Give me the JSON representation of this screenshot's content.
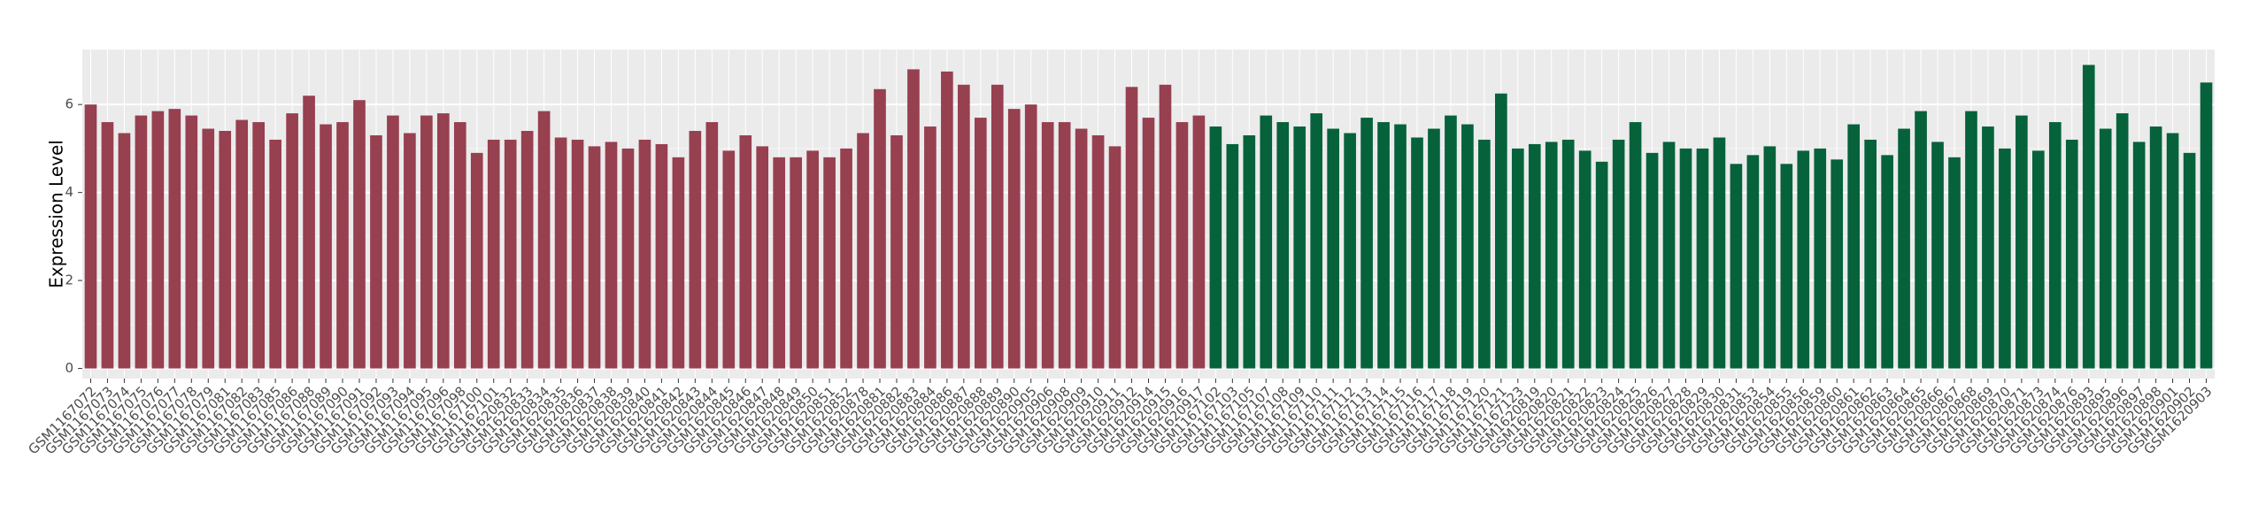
{
  "chart_data": {
    "type": "bar",
    "y_label": "Expression Level",
    "categories": [
      "GSM1167072",
      "GSM1167073",
      "GSM1167074",
      "GSM1167075",
      "GSM1167076",
      "GSM1167077",
      "GSM1167078",
      "GSM1167079",
      "GSM1167081",
      "GSM1167082",
      "GSM1167083",
      "GSM1167085",
      "GSM1167086",
      "GSM1167088",
      "GSM1167089",
      "GSM1167090",
      "GSM1167091",
      "GSM1167092",
      "GSM1167093",
      "GSM1167094",
      "GSM1167095",
      "GSM1167096",
      "GSM1167098",
      "GSM1167100",
      "GSM1167101",
      "GSM1620832",
      "GSM1620833",
      "GSM1620834",
      "GSM1620835",
      "GSM1620836",
      "GSM1620837",
      "GSM1620838",
      "GSM1620839",
      "GSM1620840",
      "GSM1620841",
      "GSM1620842",
      "GSM1620843",
      "GSM1620844",
      "GSM1620845",
      "GSM1620846",
      "GSM1620847",
      "GSM1620848",
      "GSM1620849",
      "GSM1620850",
      "GSM1620851",
      "GSM1620852",
      "GSM1620878",
      "GSM1620881",
      "GSM1620882",
      "GSM1620883",
      "GSM1620884",
      "GSM1620886",
      "GSM1620887",
      "GSM1620888",
      "GSM1620889",
      "GSM1620890",
      "GSM1620905",
      "GSM1620906",
      "GSM1620908",
      "GSM1620909",
      "GSM1620910",
      "GSM1620911",
      "GSM1620912",
      "GSM1620914",
      "GSM1620915",
      "GSM1620916",
      "GSM1620917",
      "GSM1167102",
      "GSM1167103",
      "GSM1167105",
      "GSM1167107",
      "GSM1167108",
      "GSM1167109",
      "GSM1167110",
      "GSM1167111",
      "GSM1167112",
      "GSM1167113",
      "GSM1167114",
      "GSM1167115",
      "GSM1167116",
      "GSM1167117",
      "GSM1167118",
      "GSM1167119",
      "GSM1167120",
      "GSM1167121",
      "GSM1167123",
      "GSM1620819",
      "GSM1620820",
      "GSM1620821",
      "GSM1620822",
      "GSM1620823",
      "GSM1620824",
      "GSM1620825",
      "GSM1620826",
      "GSM1620827",
      "GSM1620828",
      "GSM1620829",
      "GSM1620830",
      "GSM1620831",
      "GSM1620853",
      "GSM1620854",
      "GSM1620855",
      "GSM1620856",
      "GSM1620859",
      "GSM1620860",
      "GSM1620861",
      "GSM1620862",
      "GSM1620863",
      "GSM1620864",
      "GSM1620865",
      "GSM1620866",
      "GSM1620867",
      "GSM1620868",
      "GSM1620869",
      "GSM1620870",
      "GSM1620871",
      "GSM1620873",
      "GSM1620874",
      "GSM1620876",
      "GSM1620893",
      "GSM1620895",
      "GSM1620896",
      "GSM1620897",
      "GSM1620898",
      "GSM1620901",
      "GSM1620902",
      "GSM1620903"
    ],
    "values": [
      6.0,
      5.6,
      5.35,
      5.75,
      5.85,
      5.9,
      5.75,
      5.45,
      5.4,
      5.65,
      5.6,
      5.2,
      5.8,
      6.2,
      5.55,
      5.6,
      6.1,
      5.3,
      5.75,
      5.35,
      5.75,
      5.8,
      5.6,
      4.9,
      5.2,
      5.2,
      5.4,
      5.85,
      5.25,
      5.2,
      5.05,
      5.15,
      5.0,
      5.2,
      5.1,
      4.8,
      5.4,
      5.6,
      4.95,
      5.3,
      5.05,
      4.8,
      4.8,
      4.95,
      4.8,
      5.0,
      5.35,
      6.35,
      5.3,
      6.8,
      5.5,
      6.75,
      6.45,
      5.7,
      6.45,
      5.9,
      6.0,
      5.6,
      5.6,
      5.45,
      5.3,
      5.05,
      6.4,
      5.7,
      6.45,
      5.6,
      5.75,
      5.5,
      5.1,
      5.3,
      5.75,
      5.6,
      5.5,
      5.8,
      5.45,
      5.35,
      5.7,
      5.6,
      5.55,
      5.25,
      5.45,
      5.75,
      5.55,
      5.2,
      6.25,
      5.0,
      5.1,
      5.15,
      5.2,
      4.95,
      4.7,
      5.2,
      5.6,
      4.9,
      5.15,
      5.0,
      5.0,
      5.25,
      4.65,
      4.85,
      5.05,
      4.65,
      4.95,
      5.0,
      4.75,
      5.55,
      5.2,
      4.85,
      5.45,
      5.85,
      5.15,
      4.8,
      5.85,
      5.5,
      5.0,
      5.75,
      4.95,
      5.6,
      5.2,
      6.9,
      5.45,
      5.8,
      5.15,
      5.5,
      5.35,
      4.9,
      6.5
    ],
    "colors": [
      "#97404f",
      "#97404f",
      "#97404f",
      "#97404f",
      "#97404f",
      "#97404f",
      "#97404f",
      "#97404f",
      "#97404f",
      "#97404f",
      "#97404f",
      "#97404f",
      "#97404f",
      "#97404f",
      "#97404f",
      "#97404f",
      "#97404f",
      "#97404f",
      "#97404f",
      "#97404f",
      "#97404f",
      "#97404f",
      "#97404f",
      "#97404f",
      "#97404f",
      "#97404f",
      "#97404f",
      "#97404f",
      "#97404f",
      "#97404f",
      "#97404f",
      "#97404f",
      "#97404f",
      "#97404f",
      "#97404f",
      "#97404f",
      "#97404f",
      "#97404f",
      "#97404f",
      "#97404f",
      "#97404f",
      "#97404f",
      "#97404f",
      "#97404f",
      "#97404f",
      "#97404f",
      "#97404f",
      "#97404f",
      "#97404f",
      "#97404f",
      "#97404f",
      "#97404f",
      "#97404f",
      "#97404f",
      "#97404f",
      "#97404f",
      "#97404f",
      "#97404f",
      "#97404f",
      "#97404f",
      "#97404f",
      "#97404f",
      "#97404f",
      "#97404f",
      "#97404f",
      "#97404f",
      "#97404f",
      "#06623b",
      "#06623b",
      "#06623b",
      "#06623b",
      "#06623b",
      "#06623b",
      "#06623b",
      "#06623b",
      "#06623b",
      "#06623b",
      "#06623b",
      "#06623b",
      "#06623b",
      "#06623b",
      "#06623b",
      "#06623b",
      "#06623b",
      "#06623b",
      "#06623b",
      "#06623b",
      "#06623b",
      "#06623b",
      "#06623b",
      "#06623b",
      "#06623b",
      "#06623b",
      "#06623b",
      "#06623b",
      "#06623b",
      "#06623b",
      "#06623b",
      "#06623b",
      "#06623b",
      "#06623b",
      "#06623b",
      "#06623b",
      "#06623b",
      "#06623b",
      "#06623b",
      "#06623b",
      "#06623b",
      "#06623b",
      "#06623b",
      "#06623b",
      "#06623b",
      "#06623b",
      "#06623b",
      "#06623b",
      "#06623b",
      "#06623b",
      "#06623b",
      "#06623b",
      "#06623b",
      "#06623b",
      "#06623b",
      "#06623b",
      "#06623b",
      "#06623b",
      "#06623b",
      "#06623b"
    ],
    "ylim": [
      -0.23,
      7.25
    ],
    "yticks": [
      0,
      2,
      4,
      6
    ],
    "grid": true
  }
}
